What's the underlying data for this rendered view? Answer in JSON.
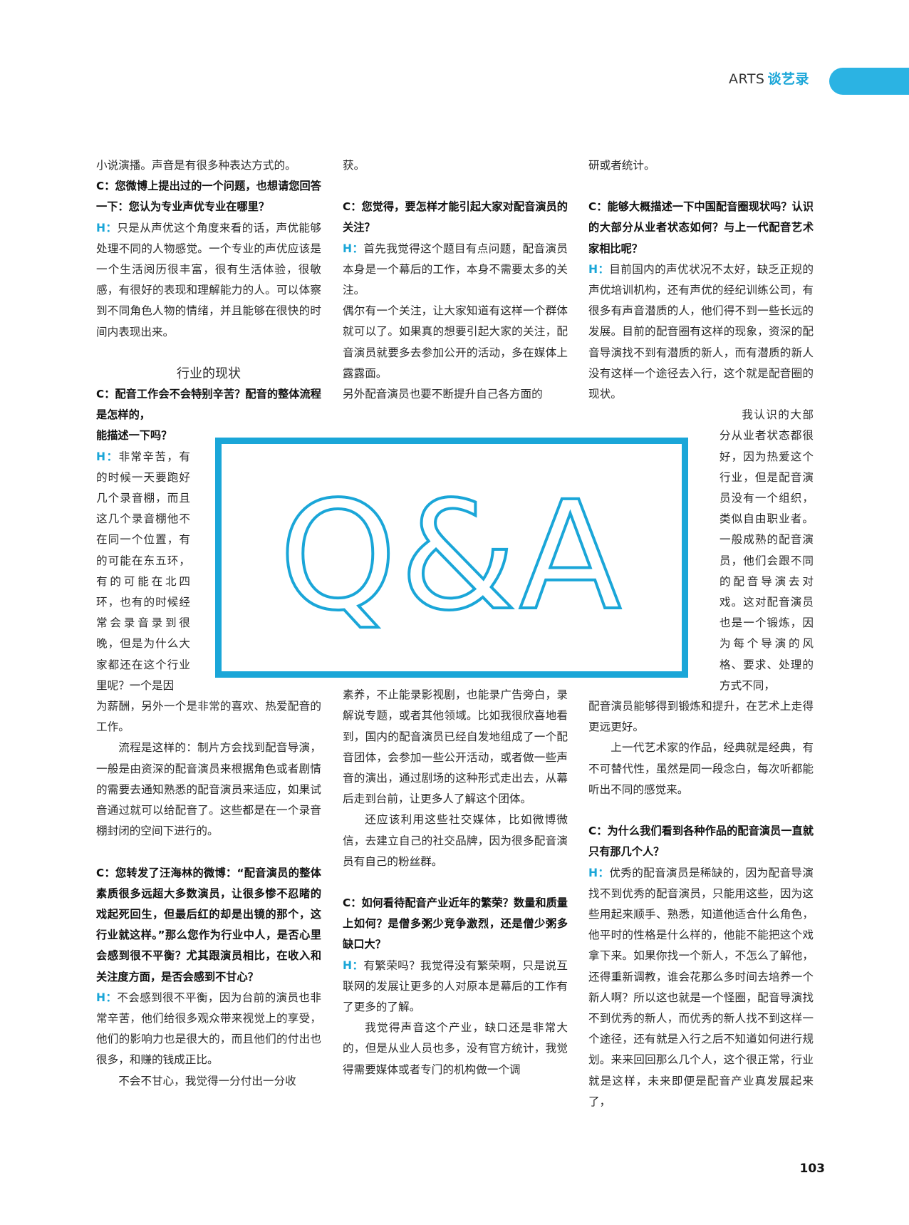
{
  "header": {
    "en": "ARTS",
    "zh": "谈艺录"
  },
  "page_number": "103",
  "qa_graphic": {
    "text": "Q&A",
    "color": "#1aa6d8"
  },
  "col1": {
    "p1": "小说演播。声音是有很多种表达方式的。",
    "q1": "C：您微博上提出过的一个问题，也想请您回答一下：您认为专业声优专业在哪里？",
    "a1_h": "H：",
    "a1": "只是从声优这个角度来看的话，声优能够处理不同的人物感觉。一个专业的声优应该是一个生活阅历很丰富，很有生活体验，很敏感，有很好的表现和理解能力的人。可以体察到不同角色人物的情绪，并且能够在很快的时间内表现出来。",
    "section": "行业的现状",
    "q2": "C：配音工作会不会特别辛苦？配音的整体流程是怎样的，",
    "q2b": "能描述一下吗？",
    "a2_h": "H：",
    "a2": "非常辛苦，有的时候一天要跑好几个录音棚，而且这几个录音棚他不在同一个位置，有的可能在东五环，有的可能在北四环，也有的时候经常会录音录到很晚，但是为什么大家都还在这个行业里呢？一个是因",
    "a2c": "为薪酬，另外一个是非常的喜欢、热爱配音的工作。",
    "a2d": "流程是这样的：制片方会找到配音导演，一般是由资深的配音演员来根据角色或者剧情的需要去通知熟悉的配音演员来适应，如果试音通过就可以给配音了。这些都是在一个录音棚封闭的空间下进行的。",
    "q3": "C：您转发了汪海林的微博：“配音演员的整体素质很多远超大多数演员，让很多惨不忍睹的戏起死回生，但最后红的却是出镜的那个，这行业就这样。”那么您作为行业中人，是否心里会感到很不平衡？尤其跟演员相比，在收入和关注度方面，是否会感到不甘心？",
    "a3_h": "H：",
    "a3": "不会感到很不平衡，因为台前的演员也非常辛苦，他们给很多观众带来视觉上的享受，他们的影响力也是很大的，而且他们的付出也很多，和赚的钱成正比。",
    "a3b": "不会不甘心，我觉得一分付出一分收"
  },
  "col2": {
    "p1": "获。",
    "q1": "C：您觉得，要怎样才能引起大家对配音演员的关注？",
    "a1_h": "H：",
    "a1": "首先我觉得这个题目有点问题，配音演员本身是一个幕后的工作，本身不需要太多的关注。",
    "a1b": "偶尔有一个关注，让大家知道有这样一个群体就可以了。如果真的想要引起大家的关注，配音演员就要多去参加公开的活动，多在媒体上露露面。",
    "a1c": "另外配音演员也要不断提升自己各方面的",
    "a1d": "素养，不止能录影视剧，也能录广告旁白，录解说专题，或者其他领域。比如我很欣喜地看到，国内的配音演员已经自发地组成了一个配音团体，会参加一些公开活动，或者做一些声音的演出，通过剧场的这种形式走出去，从幕后走到台前，让更多人了解这个团体。",
    "a1e": "还应该利用这些社交媒体，比如微博微信，去建立自己的社交品牌，因为很多配音演员有自己的粉丝群。",
    "q2": "C：如何看待配音产业近年的繁荣？数量和质量上如何？是僧多粥少竞争激烈，还是僧少粥多缺口大？",
    "a2_h": "H：",
    "a2": "有繁荣吗？我觉得没有繁荣啊，只是说互联网的发展让更多的人对原本是幕后的工作有了更多的了解。",
    "a2b": "我觉得声音这个产业，缺口还是非常大的，但是从业人员也多，没有官方统计，我觉得需要媒体或者专门的机构做一个调"
  },
  "col3": {
    "p1": "研或者统计。",
    "q1": "C：能够大概描述一下中国配音圈现状吗？认识的大部分从业者状态如何？与上一代配音艺术家相比呢？",
    "a1_h": "H：",
    "a1": "目前国内的声优状况不太好，缺乏正规的声优培训机构，还有声优的经纪训练公司，有很多有声音潜质的人，他们得不到一些长远的发展。目前的配音圈有这样的现象，资深的配音导演找不到有潜质的新人，而有潜质的新人没有这样一个途径去入行，这个就是配音圈的现状。",
    "a1b": "我认识的大部分从业者状态都很好，因为热爱这个行业，但是配音演员没有一个组织，类似自由职业者。一般成熟的配音演员，他们会跟不同的配音导演去对戏。这对配音演员也是一个锻炼，因为每个导演的风格、要求、处理的方式不同，",
    "a1c": "配音演员能够得到锻炼和提升，在艺术上走得更远更好。",
    "a1d": "上一代艺术家的作品，经典就是经典，有不可替代性，虽然是同一段念白，每次听都能听出不同的感觉来。",
    "q2": "C：为什么我们看到各种作品的配音演员一直就只有那几个人？",
    "a2_h": "H：",
    "a2": "优秀的配音演员是稀缺的，因为配音导演找不到优秀的配音演员，只能用这些，因为这些用起来顺手、熟悉，知道他适合什么角色，他平时的性格是什么样的，他能不能把这个戏拿下来。如果你找一个新人，不怎么了解他，还得重新调教，谁会花那么多时间去培养一个新人啊？所以这也就是一个怪圈，配音导演找不到优秀的新人，而优秀的新人找不到这样一个途径，还有就是入行之后不知道如何进行规划。来来回回那么几个人，这个很正常，行业就是这样，未来即便是配音产业真发展起来了，"
  }
}
